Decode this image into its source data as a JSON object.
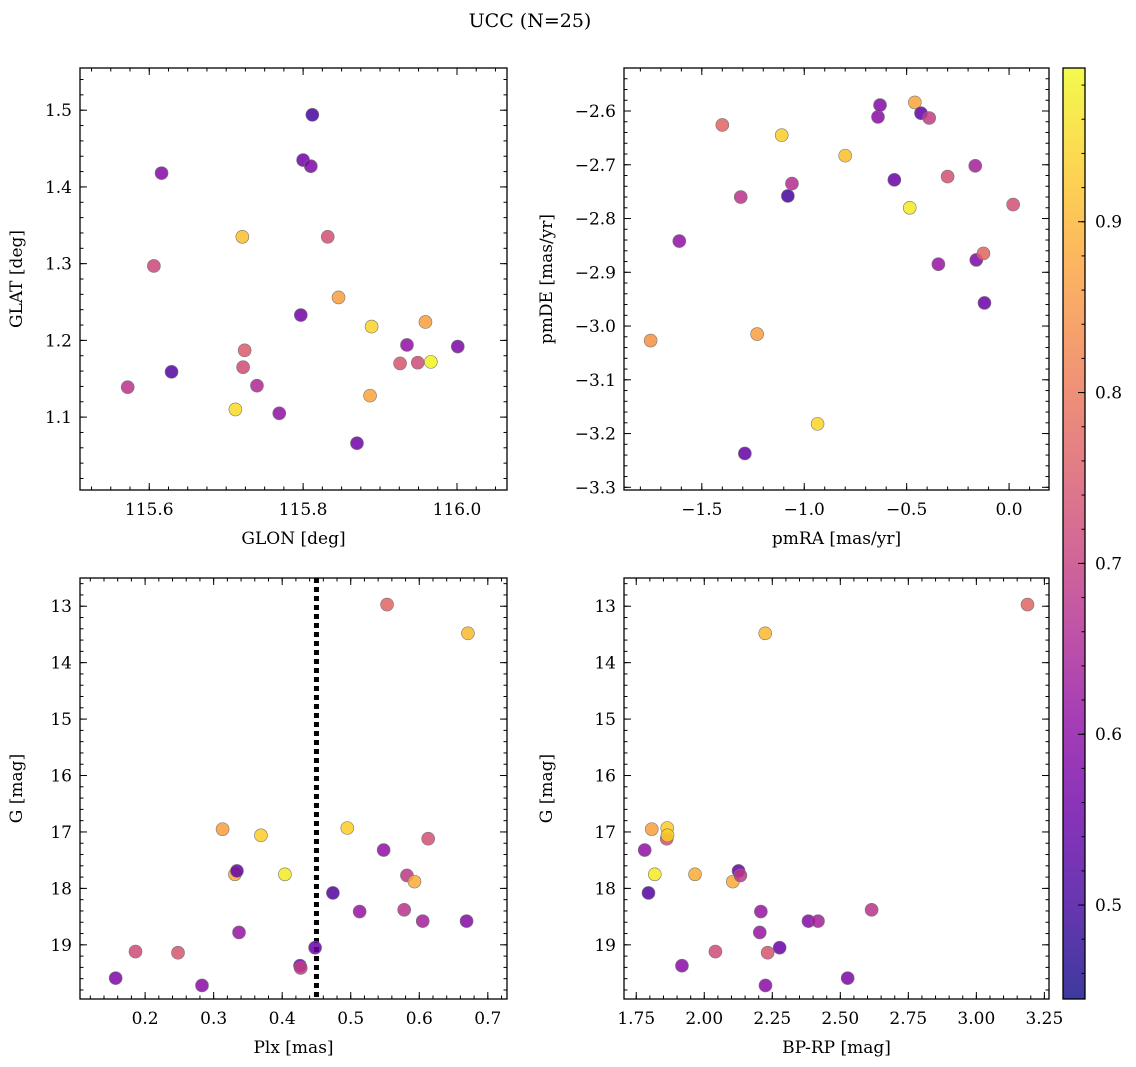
{
  "title": "UCC (N=25)",
  "colorbar": {
    "colormap": "plasma",
    "range": [
      0.445,
      0.99
    ],
    "ticks": [
      0.5,
      0.6,
      0.7,
      0.8,
      0.9
    ],
    "tick_labels": [
      "0.5",
      "0.6",
      "0.7",
      "0.8",
      "0.9"
    ]
  },
  "chart_data": [
    {
      "type": "scatter",
      "xlabel": "GLON [deg]",
      "ylabel": "GLAT [deg]",
      "xlim": [
        115.51,
        116.065
      ],
      "ylim": [
        1.005,
        1.555
      ],
      "y_inverted": false,
      "xticks": [
        115.6,
        115.8,
        116.0
      ],
      "xtick_labels": [
        "115.6",
        "115.8",
        "116.0"
      ],
      "xminor": 0.025,
      "yticks": [
        1.1,
        1.2,
        1.3,
        1.4,
        1.5
      ],
      "ytick_labels": [
        "1.1",
        "1.2",
        "1.3",
        "1.4",
        "1.5"
      ],
      "yminor": 0.02,
      "points": [
        {
          "x": 115.572,
          "y": 1.139,
          "c": 0.66
        },
        {
          "x": 115.606,
          "y": 1.297,
          "c": 0.7
        },
        {
          "x": 115.616,
          "y": 1.418,
          "c": 0.57
        },
        {
          "x": 115.629,
          "y": 1.159,
          "c": 0.5
        },
        {
          "x": 115.712,
          "y": 1.11,
          "c": 0.95
        },
        {
          "x": 115.721,
          "y": 1.335,
          "c": 0.91
        },
        {
          "x": 115.722,
          "y": 1.165,
          "c": 0.71
        },
        {
          "x": 115.724,
          "y": 1.187,
          "c": 0.74
        },
        {
          "x": 115.74,
          "y": 1.141,
          "c": 0.64
        },
        {
          "x": 115.769,
          "y": 1.105,
          "c": 0.59
        },
        {
          "x": 115.797,
          "y": 1.233,
          "c": 0.54
        },
        {
          "x": 115.8,
          "y": 1.435,
          "c": 0.54
        },
        {
          "x": 115.81,
          "y": 1.427,
          "c": 0.56
        },
        {
          "x": 115.812,
          "y": 1.494,
          "c": 0.48
        },
        {
          "x": 115.832,
          "y": 1.335,
          "c": 0.72
        },
        {
          "x": 115.846,
          "y": 1.256,
          "c": 0.86
        },
        {
          "x": 115.87,
          "y": 1.066,
          "c": 0.54
        },
        {
          "x": 115.887,
          "y": 1.128,
          "c": 0.87
        },
        {
          "x": 115.889,
          "y": 1.218,
          "c": 0.94
        },
        {
          "x": 115.926,
          "y": 1.17,
          "c": 0.73
        },
        {
          "x": 115.935,
          "y": 1.194,
          "c": 0.59
        },
        {
          "x": 115.949,
          "y": 1.171,
          "c": 0.71
        },
        {
          "x": 115.959,
          "y": 1.224,
          "c": 0.86
        },
        {
          "x": 115.966,
          "y": 1.172,
          "c": 0.98
        },
        {
          "x": 116.001,
          "y": 1.192,
          "c": 0.56
        }
      ]
    },
    {
      "type": "scatter",
      "xlabel": "pmRA [mas/yr]",
      "ylabel": "pmDE [mas/yr]",
      "xlim": [
        -1.88,
        0.195
      ],
      "ylim": [
        -3.305,
        -2.52
      ],
      "y_inverted": false,
      "xticks": [
        -1.5,
        -1.0,
        -0.5,
        0.0
      ],
      "xtick_labels": [
        "−1.5",
        "−1.0",
        "−0.5",
        "0.0"
      ],
      "xminor": 0.1,
      "yticks": [
        -3.3,
        -3.2,
        -3.1,
        -3.0,
        -2.9,
        -2.8,
        -2.7,
        -2.6
      ],
      "ytick_labels": [
        "−3.3",
        "−3.2",
        "−3.1",
        "−3.0",
        "−2.9",
        "−2.8",
        "−2.7",
        "−2.6"
      ],
      "yminor": 0.02,
      "points": [
        {
          "x": -1.75,
          "y": -3.027,
          "c": 0.84
        },
        {
          "x": -1.61,
          "y": -2.842,
          "c": 0.59
        },
        {
          "x": -1.4,
          "y": -2.626,
          "c": 0.76
        },
        {
          "x": -1.31,
          "y": -2.76,
          "c": 0.66
        },
        {
          "x": -1.29,
          "y": -3.237,
          "c": 0.52
        },
        {
          "x": -1.23,
          "y": -3.015,
          "c": 0.86
        },
        {
          "x": -1.11,
          "y": -2.645,
          "c": 0.93
        },
        {
          "x": -1.08,
          "y": -2.758,
          "c": 0.48
        },
        {
          "x": -1.06,
          "y": -2.735,
          "c": 0.65
        },
        {
          "x": -0.935,
          "y": -3.182,
          "c": 0.94
        },
        {
          "x": -0.8,
          "y": -2.683,
          "c": 0.91
        },
        {
          "x": -0.64,
          "y": -2.611,
          "c": 0.58
        },
        {
          "x": -0.63,
          "y": -2.589,
          "c": 0.57
        },
        {
          "x": -0.56,
          "y": -2.728,
          "c": 0.53
        },
        {
          "x": -0.485,
          "y": -2.78,
          "c": 0.97
        },
        {
          "x": -0.46,
          "y": -2.584,
          "c": 0.87
        },
        {
          "x": -0.43,
          "y": -2.604,
          "c": 0.52
        },
        {
          "x": -0.39,
          "y": -2.613,
          "c": 0.68
        },
        {
          "x": -0.345,
          "y": -2.885,
          "c": 0.6
        },
        {
          "x": -0.3,
          "y": -2.722,
          "c": 0.72
        },
        {
          "x": -0.165,
          "y": -2.702,
          "c": 0.62
        },
        {
          "x": -0.16,
          "y": -2.877,
          "c": 0.56
        },
        {
          "x": -0.125,
          "y": -2.865,
          "c": 0.76
        },
        {
          "x": -0.12,
          "y": -2.957,
          "c": 0.53
        },
        {
          "x": 0.02,
          "y": -2.774,
          "c": 0.72
        }
      ]
    },
    {
      "type": "scatter",
      "xlabel": "Plx [mas]",
      "ylabel": "G [mag]",
      "xlim": [
        0.105,
        0.728
      ],
      "ylim": [
        19.96,
        12.5
      ],
      "y_inverted": true,
      "xticks": [
        0.2,
        0.3,
        0.4,
        0.5,
        0.6,
        0.7
      ],
      "xtick_labels": [
        "0.2",
        "0.3",
        "0.4",
        "0.5",
        "0.6",
        "0.7"
      ],
      "xminor": 0.02,
      "yticks": [
        13,
        14,
        15,
        16,
        17,
        18,
        19
      ],
      "ytick_labels": [
        "13",
        "14",
        "15",
        "16",
        "17",
        "18",
        "19"
      ],
      "yminor": 0.2,
      "vline": {
        "x": 0.45,
        "style": "dotted",
        "color": "#000000"
      },
      "points": [
        {
          "x": 0.157,
          "y": 19.59,
          "c": 0.56
        },
        {
          "x": 0.186,
          "y": 19.12,
          "c": 0.71
        },
        {
          "x": 0.248,
          "y": 19.14,
          "c": 0.73
        },
        {
          "x": 0.283,
          "y": 19.72,
          "c": 0.58
        },
        {
          "x": 0.313,
          "y": 16.95,
          "c": 0.86
        },
        {
          "x": 0.331,
          "y": 17.75,
          "c": 0.88
        },
        {
          "x": 0.334,
          "y": 17.69,
          "c": 0.52
        },
        {
          "x": 0.337,
          "y": 18.78,
          "c": 0.6
        },
        {
          "x": 0.369,
          "y": 17.06,
          "c": 0.93
        },
        {
          "x": 0.404,
          "y": 17.75,
          "c": 0.97
        },
        {
          "x": 0.426,
          "y": 19.37,
          "c": 0.54
        },
        {
          "x": 0.427,
          "y": 19.41,
          "c": 0.68
        },
        {
          "x": 0.448,
          "y": 19.05,
          "c": 0.53
        },
        {
          "x": 0.474,
          "y": 18.08,
          "c": 0.5
        },
        {
          "x": 0.495,
          "y": 16.93,
          "c": 0.93
        },
        {
          "x": 0.513,
          "y": 18.41,
          "c": 0.6
        },
        {
          "x": 0.548,
          "y": 17.32,
          "c": 0.59
        },
        {
          "x": 0.553,
          "y": 12.97,
          "c": 0.76
        },
        {
          "x": 0.578,
          "y": 18.38,
          "c": 0.66
        },
        {
          "x": 0.582,
          "y": 17.77,
          "c": 0.67
        },
        {
          "x": 0.593,
          "y": 17.88,
          "c": 0.88
        },
        {
          "x": 0.605,
          "y": 18.58,
          "c": 0.62
        },
        {
          "x": 0.613,
          "y": 17.12,
          "c": 0.72
        },
        {
          "x": 0.669,
          "y": 18.58,
          "c": 0.57
        },
        {
          "x": 0.671,
          "y": 13.48,
          "c": 0.9
        }
      ]
    },
    {
      "type": "scatter",
      "xlabel": "BP-RP [mag]",
      "ylabel": "G [mag]",
      "xlim": [
        1.705,
        3.267
      ],
      "ylim": [
        19.96,
        12.5
      ],
      "y_inverted": true,
      "xticks": [
        1.75,
        2.0,
        2.25,
        2.5,
        2.75,
        3.0,
        3.25
      ],
      "xtick_labels": [
        "1.75",
        "2.00",
        "2.25",
        "2.50",
        "2.75",
        "3.00",
        "3.25"
      ],
      "xminor": 0.05,
      "yticks": [
        13,
        14,
        15,
        16,
        17,
        18,
        19
      ],
      "ytick_labels": [
        "13",
        "14",
        "15",
        "16",
        "17",
        "18",
        "19"
      ],
      "yminor": 0.2,
      "points": [
        {
          "x": 1.781,
          "y": 17.32,
          "c": 0.59
        },
        {
          "x": 1.795,
          "y": 18.08,
          "c": 0.5
        },
        {
          "x": 1.807,
          "y": 16.95,
          "c": 0.86
        },
        {
          "x": 1.818,
          "y": 17.75,
          "c": 0.97
        },
        {
          "x": 1.862,
          "y": 17.12,
          "c": 0.72
        },
        {
          "x": 1.864,
          "y": 16.93,
          "c": 0.93
        },
        {
          "x": 1.865,
          "y": 17.06,
          "c": 0.93
        },
        {
          "x": 1.918,
          "y": 19.37,
          "c": 0.58
        },
        {
          "x": 1.966,
          "y": 17.75,
          "c": 0.88
        },
        {
          "x": 2.041,
          "y": 19.12,
          "c": 0.71
        },
        {
          "x": 2.105,
          "y": 17.88,
          "c": 0.88
        },
        {
          "x": 2.126,
          "y": 17.69,
          "c": 0.52
        },
        {
          "x": 2.133,
          "y": 17.77,
          "c": 0.67
        },
        {
          "x": 2.204,
          "y": 18.78,
          "c": 0.6
        },
        {
          "x": 2.208,
          "y": 18.41,
          "c": 0.6
        },
        {
          "x": 2.224,
          "y": 13.48,
          "c": 0.9
        },
        {
          "x": 2.225,
          "y": 19.72,
          "c": 0.58
        },
        {
          "x": 2.233,
          "y": 19.14,
          "c": 0.73
        },
        {
          "x": 2.277,
          "y": 19.05,
          "c": 0.53
        },
        {
          "x": 2.383,
          "y": 18.58,
          "c": 0.57
        },
        {
          "x": 2.418,
          "y": 18.58,
          "c": 0.62
        },
        {
          "x": 2.527,
          "y": 19.59,
          "c": 0.56
        },
        {
          "x": 2.615,
          "y": 18.38,
          "c": 0.66
        },
        {
          "x": 3.188,
          "y": 12.97,
          "c": 0.76
        }
      ]
    }
  ]
}
